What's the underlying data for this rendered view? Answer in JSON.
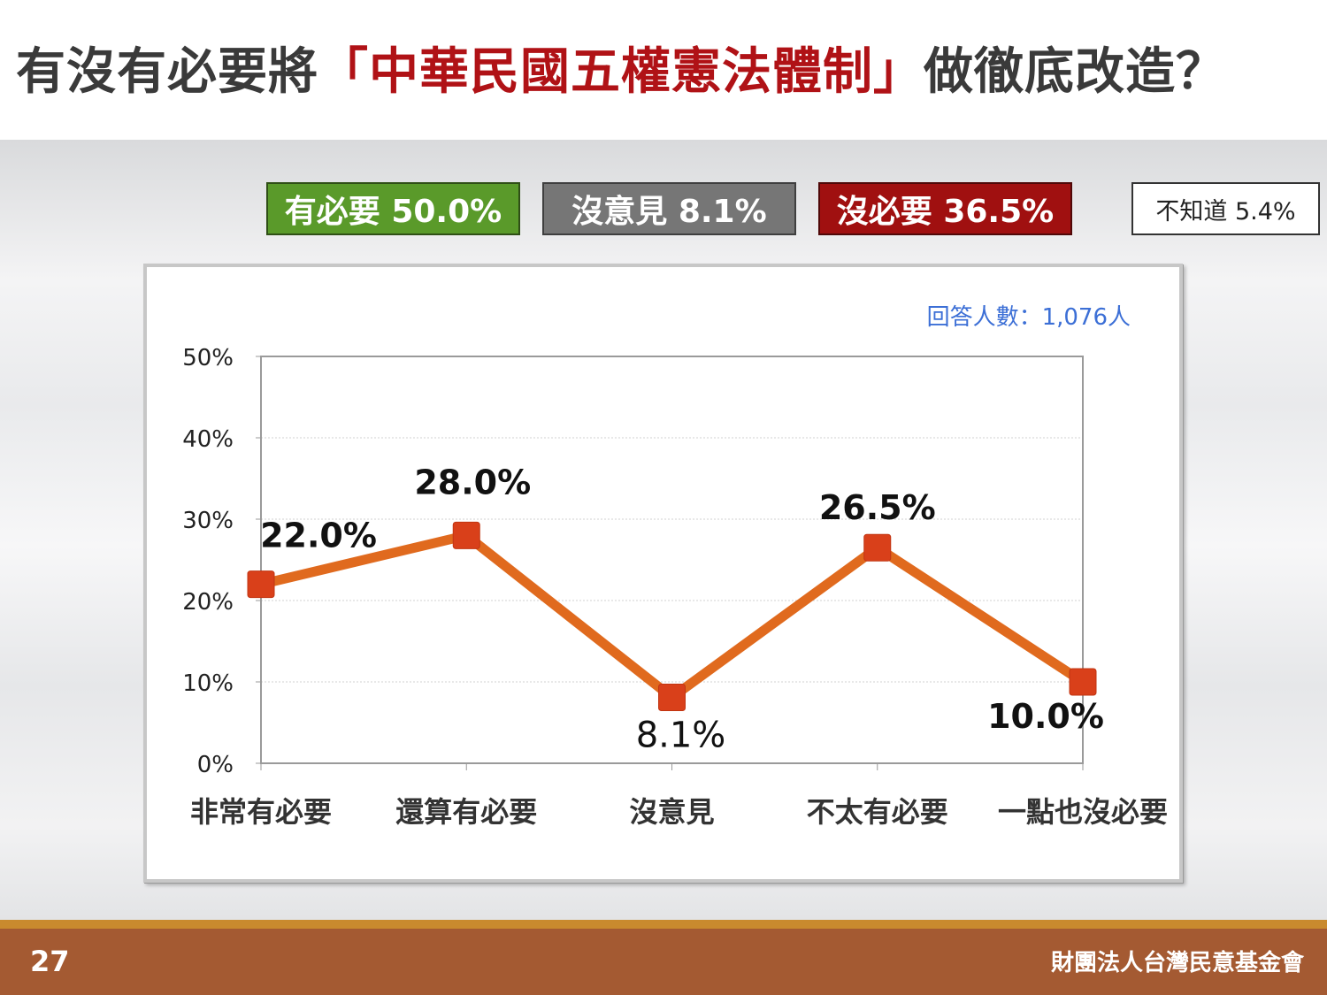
{
  "slide": {
    "title_prefix": "有沒有必要將",
    "title_highlight": "「中華民國五權憲法體制」",
    "title_suffix": "做徹底改造？",
    "page_number": "27",
    "organization": "財團法人台灣民意基金會"
  },
  "summary": [
    {
      "label": "有必要 50.0%",
      "color": "#5a9a2a"
    },
    {
      "label": "沒意見 8.1%",
      "color": "#767676"
    },
    {
      "label": "沒必要 36.5%",
      "color": "#a01010"
    },
    {
      "label": "不知道 5.4%",
      "color": "#ffffff"
    }
  ],
  "chart_data": {
    "type": "line",
    "annotation": "回答人數：1,076人",
    "categories": [
      "非常有必要",
      "還算有必要",
      "沒意見",
      "不太有必要",
      "一點也沒必要"
    ],
    "values": [
      22.0,
      28.0,
      8.1,
      26.5,
      10.0
    ],
    "data_labels": [
      "22.0%",
      "28.0%",
      "8.1%",
      "26.5%",
      "10.0%"
    ],
    "y_ticks": [
      "0%",
      "10%",
      "20%",
      "30%",
      "40%",
      "50%"
    ],
    "ylim": [
      0,
      50
    ],
    "grid": true,
    "line_color": "#e06a1e",
    "marker_color": "#d9401a",
    "annotation_color": "#3c6fd6"
  }
}
